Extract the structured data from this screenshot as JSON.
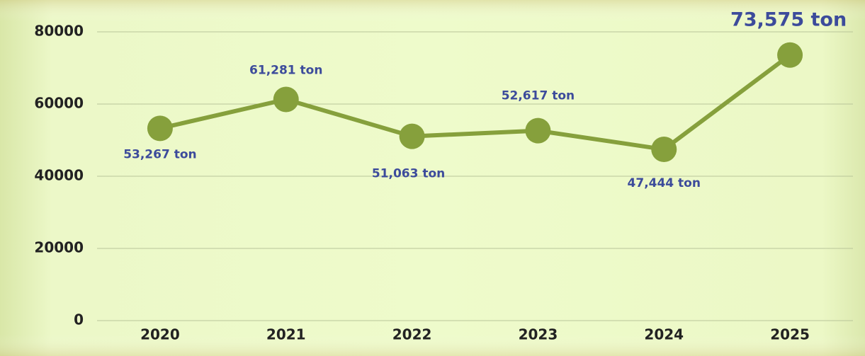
{
  "chart_data": {
    "type": "line",
    "categories": [
      "2020",
      "2021",
      "2022",
      "2023",
      "2024",
      "2025"
    ],
    "values": [
      53267,
      61281,
      51063,
      52617,
      47444,
      73575
    ],
    "value_labels": [
      "53,267 ton",
      "61,281 ton",
      "51,063 ton",
      "52,617 ton",
      "47,444 ton",
      "73,575 ton"
    ],
    "color": "#86a03c",
    "label_color": "#3c4b9b",
    "ylim": [
      0,
      80000
    ],
    "yticks": [
      0,
      20000,
      40000,
      60000,
      80000
    ],
    "grid": true
  }
}
